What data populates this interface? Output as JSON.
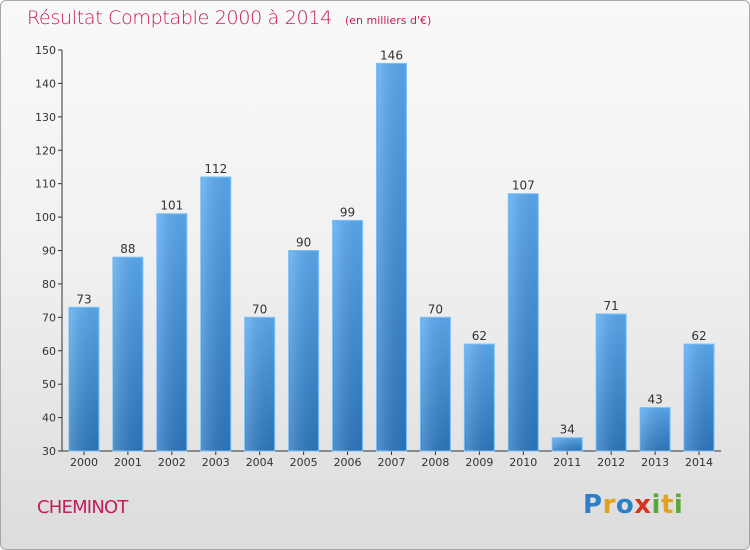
{
  "chart_data": {
    "type": "bar",
    "title": "Résultat Comptable 2000 à 2014",
    "unit_note": "(en milliers d'€)",
    "xlabel": "",
    "ylabel": "",
    "categories": [
      "2000",
      "2001",
      "2002",
      "2003",
      "2004",
      "2005",
      "2006",
      "2007",
      "2008",
      "2009",
      "2010",
      "2011",
      "2012",
      "2013",
      "2014"
    ],
    "values": [
      73,
      88,
      101,
      112,
      70,
      90,
      99,
      146,
      70,
      62,
      107,
      34,
      71,
      43,
      62
    ],
    "data_labels": [
      "73",
      "88",
      "101",
      "112",
      "70",
      "90",
      "99",
      "146",
      "70",
      "62",
      "107",
      "34",
      "71",
      "43",
      "62"
    ],
    "ylim": [
      30,
      150
    ],
    "yticks": [
      30,
      40,
      50,
      60,
      70,
      80,
      90,
      100,
      110,
      120,
      130,
      140,
      150
    ],
    "grid": false,
    "legend": "none",
    "bar_color": "#3d8fd4",
    "bar_color_light": "#5ba9ea",
    "bar_color_dark": "#2a73b8"
  },
  "footer": {
    "commune": "CHEMINOT",
    "logo_letters": [
      {
        "ch": "P",
        "color": "#2f7fc8"
      },
      {
        "ch": "r",
        "color": "#e2a21f"
      },
      {
        "ch": "o",
        "color": "#2f7fc8"
      },
      {
        "ch": "x",
        "color": "#d8331d"
      },
      {
        "ch": "i",
        "color": "#5aa83a"
      },
      {
        "ch": "t",
        "color": "#e2a21f"
      },
      {
        "ch": "i",
        "color": "#5aa83a"
      }
    ]
  },
  "colors": {
    "title": "#c41c5c",
    "axis": "#333333"
  }
}
